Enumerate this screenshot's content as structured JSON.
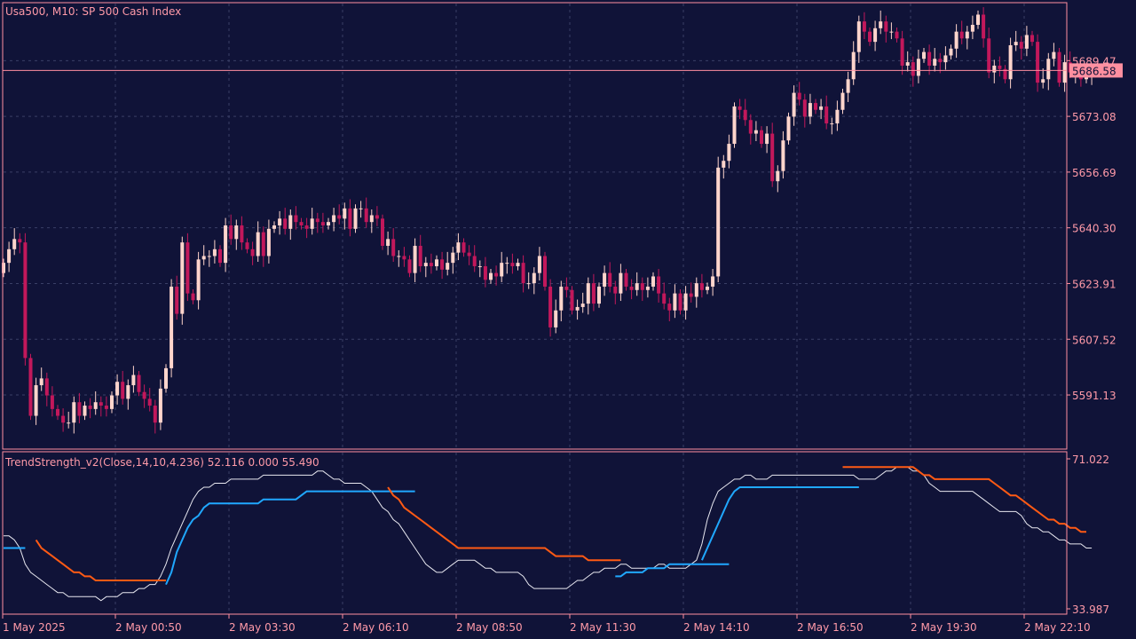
{
  "chart_data": {
    "type": "candlestick",
    "main_title": "Usa500, M10:  SP 500 Cash Index",
    "indicator_title": "TrendStrength_v2(Close,14,10,4.236) 52.116 0.000 55.490",
    "current_price": 5686.58,
    "current_price_label": "5686.58",
    "price_axis": {
      "ylim": [
        5576,
        5706
      ],
      "ticks": [
        "5689.47",
        "5673.08",
        "5656.69",
        "5640.30",
        "5623.91",
        "5607.52",
        "5591.13"
      ]
    },
    "indicator_axis": {
      "ylim": [
        33.987,
        71.022
      ],
      "ticks": [
        "71.022",
        "33.987"
      ]
    },
    "time_labels": [
      "1 May 2025",
      "2 May 00:50",
      "2 May 03:30",
      "2 May 06:10",
      "2 May 08:50",
      "2 May 11:30",
      "2 May 14:10",
      "2 May 16:50",
      "2 May 19:30",
      "2 May 22:10"
    ],
    "closes": [
      5630,
      5634,
      5637,
      5636,
      5602,
      5585,
      5594,
      5596,
      5591,
      5587,
      5585,
      5583,
      5583,
      5589,
      5585,
      5588,
      5587,
      5589,
      5588,
      5587,
      5591,
      5595,
      5590,
      5594,
      5597,
      5592,
      5590,
      5588,
      5583,
      5593,
      5599,
      5623,
      5615,
      5636,
      5621,
      5619,
      5631,
      5632,
      5632,
      5634,
      5630,
      5641,
      5637,
      5641,
      5636,
      5634,
      5632,
      5639,
      5632,
      5640,
      5641,
      5643,
      5640,
      5644,
      5642,
      5641,
      5640,
      5643,
      5642,
      5641,
      5642,
      5644,
      5643,
      5646,
      5640,
      5646,
      5646,
      5642,
      5644,
      5643,
      5635,
      5637,
      5632,
      5632,
      5631,
      5627,
      5635,
      5629,
      5630,
      5629,
      5631,
      5628,
      5630,
      5633,
      5636,
      5633,
      5632,
      5629,
      5629,
      5625,
      5627,
      5626,
      5630,
      5630,
      5629,
      5630,
      5624,
      5624,
      5627,
      5632,
      5623,
      5611,
      5616,
      5623,
      5622,
      5616,
      5617,
      5618,
      5624,
      5618,
      5623,
      5627,
      5623,
      5621,
      5627,
      5623,
      5622,
      5624,
      5622,
      5623,
      5626,
      5621,
      5618,
      5616,
      5621,
      5616,
      5621,
      5620,
      5624,
      5622,
      5623,
      5626,
      5658,
      5660,
      5665,
      5676,
      5675,
      5672,
      5668,
      5669,
      5665,
      5668,
      5654,
      5657,
      5666,
      5673,
      5680,
      5678,
      5673,
      5677,
      5675,
      5676,
      5671,
      5671,
      5675,
      5680,
      5684,
      5692,
      5701,
      5698,
      5695,
      5699,
      5701,
      5698,
      5698,
      5696,
      5688,
      5689,
      5685,
      5690,
      5692,
      5688,
      5690,
      5689,
      5691,
      5693,
      5698,
      5696,
      5698,
      5700,
      5703,
      5696,
      5686,
      5688,
      5687,
      5684,
      5694,
      5695,
      5693,
      5697,
      5695,
      5683,
      5684,
      5690,
      5692,
      5683,
      5689,
      5686,
      5686,
      5684,
      5685,
      5686
    ],
    "series": [
      {
        "name": "TrendStrength",
        "values": [
          52,
          52,
          51,
          49,
          45,
          43,
          42,
          41,
          40,
          39,
          38,
          38,
          37,
          37,
          37,
          37,
          37,
          37,
          36,
          37,
          37,
          37,
          38,
          38,
          38,
          39,
          39,
          40,
          40,
          42,
          45,
          49,
          52,
          55,
          58,
          61,
          63,
          64,
          64,
          65,
          65,
          65,
          66,
          66,
          66,
          66,
          66,
          66,
          67,
          67,
          67,
          67,
          67,
          67,
          67,
          67,
          67,
          67,
          68,
          68,
          67,
          66,
          66,
          65,
          65,
          65,
          65,
          64,
          63,
          61,
          59,
          58,
          56,
          55,
          53,
          51,
          49,
          47,
          45,
          44,
          43,
          43,
          44,
          45,
          46,
          46,
          46,
          46,
          45,
          44,
          44,
          43,
          43,
          43,
          43,
          43,
          42,
          40,
          39,
          39,
          39,
          39,
          39,
          39,
          39,
          40,
          41,
          41,
          42,
          43,
          43,
          44,
          44,
          44,
          45,
          45,
          44,
          44,
          44,
          44,
          44,
          45,
          45,
          44,
          44,
          44,
          44,
          45,
          46,
          50,
          56,
          60,
          63,
          64,
          65,
          66,
          66,
          67,
          67,
          66,
          66,
          66,
          67,
          67,
          67,
          67,
          67,
          67,
          67,
          67,
          67,
          67,
          67,
          67,
          67,
          67,
          67,
          67,
          66,
          66,
          66,
          66,
          67,
          68,
          68,
          69,
          69,
          69,
          68,
          68,
          67,
          65,
          64,
          63,
          63,
          63,
          63,
          63,
          63,
          63,
          62,
          61,
          60,
          59,
          58,
          58,
          58,
          58,
          57,
          55,
          54,
          54,
          53,
          53,
          52,
          51,
          51,
          50,
          50,
          50,
          49,
          49
        ],
        "color": "#ffffff"
      },
      {
        "name": "Up",
        "values": [
          null,
          null,
          null,
          null,
          null,
          null,
          null,
          null,
          null,
          null,
          null,
          null,
          null,
          null,
          null,
          null,
          null,
          null,
          null,
          null,
          null,
          null,
          null,
          null,
          null,
          null,
          null,
          null,
          null,
          null,
          40,
          43,
          48,
          51,
          54,
          56,
          57,
          59,
          60,
          60,
          60,
          60,
          60,
          60,
          60,
          60,
          60,
          60,
          61,
          61,
          61,
          61,
          61,
          61,
          61,
          62,
          63,
          63,
          63,
          63,
          63,
          63,
          63,
          63,
          63,
          63,
          63,
          63,
          63,
          63,
          63,
          63,
          63,
          63,
          63,
          63,
          63,
          null,
          null,
          null,
          null,
          null,
          null,
          null,
          null,
          null,
          null,
          null,
          null,
          null,
          null,
          null,
          null,
          null,
          null,
          null,
          null,
          null,
          null,
          null,
          null,
          null,
          null,
          null,
          null,
          null,
          null,
          null,
          null,
          null,
          null,
          null,
          null,
          null,
          null,
          null,
          null,
          null,
          null,
          null,
          null,
          null,
          null,
          null,
          null,
          null,
          null,
          null,
          null,
          null,
          null,
          null,
          null,
          null,
          null,
          null,
          null,
          null,
          null,
          null,
          null,
          null,
          null,
          null,
          null,
          null,
          null,
          null,
          null,
          null,
          null,
          null,
          null,
          null,
          null,
          null,
          null,
          null,
          null,
          null,
          null,
          null,
          null,
          null,
          null,
          null,
          null,
          null,
          null,
          null,
          null,
          null,
          null,
          null,
          null,
          null,
          null,
          null,
          null,
          null,
          null,
          null,
          null,
          null,
          null,
          null,
          null,
          null,
          null,
          null,
          null,
          null,
          null,
          null,
          null,
          null,
          null,
          null,
          null,
          null,
          null,
          null
        ],
        "color": "#20a8ff"
      },
      {
        "name": "Dn",
        "values": [
          null,
          null,
          null,
          null,
          null,
          null,
          null,
          null,
          null,
          null,
          null,
          null,
          null,
          null,
          null,
          null,
          null,
          null,
          null,
          null,
          null,
          null,
          null,
          null,
          null,
          null,
          null,
          null,
          null,
          null,
          null,
          null,
          null,
          null,
          null,
          null,
          null,
          null,
          null,
          null,
          null,
          null,
          null,
          null,
          null,
          null,
          null,
          null,
          null,
          null,
          null,
          null,
          null,
          null,
          null,
          null,
          null,
          null,
          null,
          null,
          null,
          null,
          null,
          null,
          null,
          null,
          null,
          null,
          null,
          null,
          null,
          null,
          null,
          null,
          null,
          null,
          null,
          null,
          null,
          null,
          null,
          null,
          null,
          null,
          null,
          null,
          null,
          null,
          null,
          null,
          null,
          null,
          null,
          null,
          null,
          null,
          null,
          null,
          null,
          null,
          null,
          null,
          null,
          null,
          null,
          null,
          null,
          null,
          null,
          null,
          null,
          null,
          null,
          null,
          null,
          null,
          null,
          null,
          null,
          null,
          null,
          null,
          null,
          null,
          null,
          null,
          null,
          null,
          null,
          null,
          null,
          null,
          null,
          null,
          null,
          null,
          null,
          null,
          null,
          null,
          null,
          null,
          null,
          null,
          null,
          null,
          null,
          null,
          null,
          null,
          null,
          null,
          null,
          null,
          null,
          null,
          null,
          null,
          null,
          null,
          null,
          null,
          null,
          null,
          null,
          null,
          null,
          null,
          null,
          null,
          null,
          null,
          null,
          null,
          null,
          null,
          null,
          null,
          null,
          null,
          null,
          null,
          null,
          null,
          null,
          null,
          null,
          null,
          null,
          null,
          null,
          null,
          null,
          null,
          null,
          null,
          null,
          null,
          null,
          null
        ],
        "color": "#ff5a14"
      }
    ],
    "up_segments": [
      {
        "start": 0,
        "values": [
          49,
          49,
          49,
          49,
          49
        ]
      },
      {
        "start": 30,
        "values": [
          40,
          43,
          48,
          51,
          54,
          56,
          57,
          59,
          60,
          60,
          60,
          60,
          60,
          60,
          60,
          60,
          60,
          60,
          61,
          61,
          61,
          61,
          61,
          61,
          61,
          62,
          63,
          63,
          63,
          63,
          63,
          63,
          63,
          63,
          63,
          63,
          63,
          63,
          63,
          63,
          63,
          63,
          63,
          63,
          63,
          63,
          63
        ]
      },
      {
        "start": 113,
        "values": [
          42,
          42,
          43,
          43,
          43,
          43,
          44,
          44,
          44,
          44,
          45,
          45,
          45,
          45,
          45,
          45,
          45,
          45,
          45,
          45,
          45,
          45
        ]
      },
      {
        "start": 129,
        "values": [
          46,
          49,
          52,
          55,
          58,
          61,
          63,
          64,
          64,
          64,
          64,
          64,
          64,
          64,
          64,
          64,
          64,
          64,
          64,
          64,
          64,
          64,
          64,
          64,
          64,
          64,
          64,
          64,
          64,
          64
        ]
      }
    ],
    "dn_segments": [
      {
        "start": 6,
        "values": [
          51,
          49,
          48,
          47,
          46,
          45,
          44,
          43,
          43,
          42,
          42,
          41,
          41,
          41,
          41,
          41,
          41,
          41,
          41,
          41,
          41,
          41,
          41,
          41,
          41
        ]
      },
      {
        "start": 71,
        "values": [
          64,
          62,
          61,
          59,
          58,
          57,
          56,
          55,
          54,
          53,
          52,
          51,
          50,
          49,
          49,
          49,
          49,
          49,
          49,
          49,
          49,
          49,
          49,
          49,
          49,
          49,
          49,
          49,
          49,
          49,
          48,
          47,
          47,
          47,
          47,
          47,
          47,
          46,
          46,
          46,
          46,
          46,
          46,
          46
        ]
      },
      {
        "start": 155,
        "values": [
          69,
          69,
          69,
          69,
          69,
          69,
          69,
          69,
          69,
          69,
          69,
          69,
          69,
          69,
          68,
          67,
          67,
          66,
          66,
          66,
          66,
          66,
          66,
          66,
          66,
          66,
          66,
          66,
          65,
          64,
          63,
          62,
          62,
          61,
          60,
          59,
          58,
          57,
          56,
          56,
          55,
          55,
          54,
          54,
          53,
          53
        ]
      }
    ]
  },
  "colors": {
    "background": "#101338",
    "frame": "#ff8fa0",
    "bull": "#ffd5cc",
    "bear": "#c2185b",
    "grid": "#3a3f66",
    "price_line": "#ff8fa0",
    "up_line": "#20a8ff",
    "dn_line": "#ff5a14",
    "strength_line": "#e8e8f0"
  }
}
